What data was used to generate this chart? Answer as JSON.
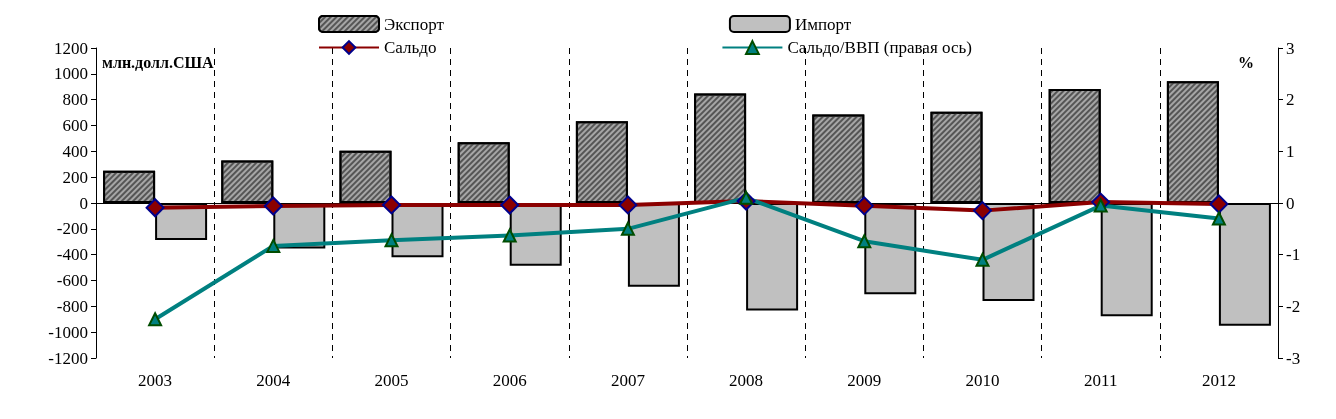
{
  "chart_data": {
    "type": "bar",
    "ylabel": "млн.долл.США",
    "y2label": "%",
    "categories": [
      "2003",
      "2004",
      "2005",
      "2006",
      "2007",
      "2008",
      "2009",
      "2010",
      "2011",
      "2012"
    ],
    "series": [
      {
        "name": "Экспорт",
        "color": "#a6a6a6",
        "values": [
          250,
          330,
          405,
          470,
          633,
          847,
          685,
          707,
          883,
          942
        ]
      },
      {
        "name": "Импорт",
        "color": "#c0c0c0",
        "values": [
          -287,
          -353,
          -420,
          -486,
          -648,
          -832,
          -707,
          -758,
          -876,
          -950
        ]
      },
      {
        "name": "Сальдо",
        "type": "line",
        "color": "#8b0000",
        "marker": "diamond",
        "values": [
          -37,
          -23,
          -15,
          -16,
          -15,
          15,
          -22,
          -59,
          7,
          -8
        ]
      },
      {
        "name": "Сальдо/ВВП (правая ось)",
        "type": "line",
        "axis": "y2",
        "color": "#008080",
        "marker": "triangle",
        "values": [
          -2.25,
          -0.83,
          -0.72,
          -0.63,
          -0.5,
          0.1,
          -0.74,
          -1.1,
          -0.05,
          -0.3
        ]
      }
    ],
    "ylim": [
      -1200,
      1200
    ],
    "yticks": [
      -1200,
      -1000,
      -800,
      -600,
      -400,
      -200,
      0,
      200,
      400,
      600,
      800,
      1000,
      1200
    ],
    "y2lim": [
      -3,
      3
    ],
    "y2ticks": [
      -3,
      -2,
      -1,
      0,
      1,
      2,
      3
    ],
    "grid": "x",
    "legend": "top"
  }
}
